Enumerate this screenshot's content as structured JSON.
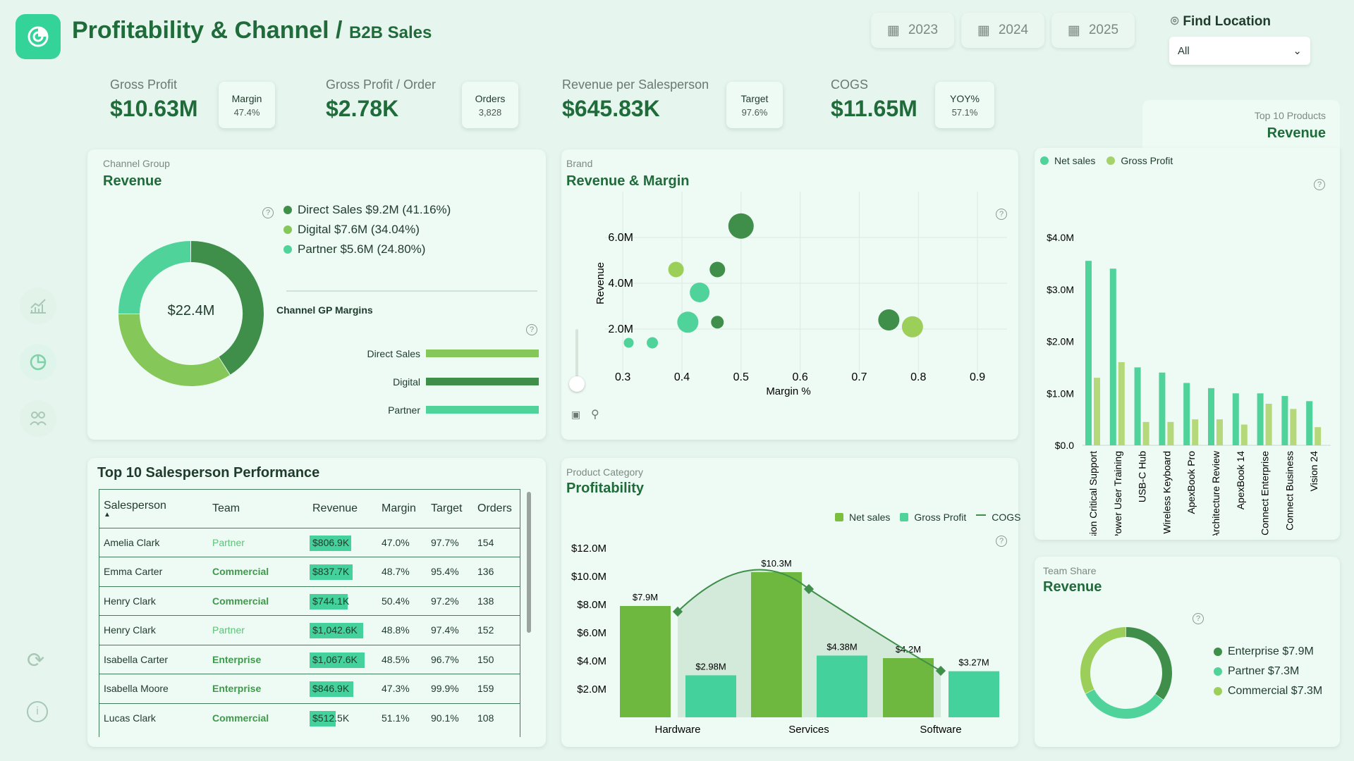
{
  "header": {
    "title": "Profitability & Channel",
    "separator": "/",
    "subtitle": "B2B Sales",
    "years": [
      "2023",
      "2024",
      "2025"
    ],
    "find_location": {
      "label": "Find Location",
      "value": "All"
    }
  },
  "kpis": [
    {
      "label": "Gross Profit",
      "value": "$10.63M",
      "badge_label": "Margin",
      "badge_value": "47.4%"
    },
    {
      "label": "Gross Profit / Order",
      "value": "$2.78K",
      "badge_label": "Orders",
      "badge_value": "3,828"
    },
    {
      "label": "Revenue per Salesperson",
      "value": "$645.83K",
      "badge_label": "Target",
      "badge_value": "97.6%"
    },
    {
      "label": "COGS",
      "value": "$11.65M",
      "badge_label": "YOY%",
      "badge_value": "57.1%"
    }
  ],
  "channel": {
    "tag": "Channel Group",
    "title": "Revenue",
    "center": "$22.4M",
    "legend": [
      "Direct Sales $9.2M (41.16%)",
      "Digital $7.6M (34.04%)",
      "Partner $5.6M (24.80%)"
    ],
    "gp_title": "Channel GP Margins",
    "gp": [
      {
        "label": "Direct Sales",
        "value": "48.1%",
        "pct": 48.1
      },
      {
        "label": "Digital",
        "value": "48.1%",
        "pct": 48.1
      },
      {
        "label": "Partner",
        "value": "45.4%",
        "pct": 45.4
      }
    ],
    "colors": [
      "#3f8f4a",
      "#86c75a",
      "#4fd39a"
    ]
  },
  "brand": {
    "tag": "Brand",
    "title": "Revenue & Margin",
    "xlabel": "Margin %",
    "ylabel": "Revenue",
    "xticks": [
      "0.3",
      "0.4",
      "0.5",
      "0.6",
      "0.7",
      "0.8",
      "0.9"
    ],
    "yticks": [
      "2.0M",
      "4.0M",
      "6.0M"
    ]
  },
  "products": {
    "tag": "Top 10 Products",
    "title": "Revenue",
    "legend": [
      "Net sales",
      "Gross Profit"
    ],
    "yticks": [
      "$4.0M",
      "$3.0M",
      "$2.0M",
      "$1.0M",
      "$0.0"
    ],
    "names": [
      "Mission Critical Support",
      "Power User Training",
      "USB-C Hub",
      "Wireless Keyboard",
      "ApexBook Pro",
      "Architecture Review",
      "ApexBook 14",
      "Connect Enterprise",
      "Connect Business",
      "Vision 24"
    ]
  },
  "sales": {
    "title": "Top 10 Salesperson Performance",
    "columns": [
      "Salesperson",
      "Team",
      "Revenue",
      "Margin",
      "Target",
      "Orders"
    ],
    "rows": [
      {
        "name": "Amelia Clark",
        "team": "Partner",
        "revenue": "$806.9K",
        "margin": "47.0%",
        "target": "97.7%",
        "orders": "154"
      },
      {
        "name": "Emma Carter",
        "team": "Commercial",
        "revenue": "$837.7K",
        "margin": "48.7%",
        "target": "95.4%",
        "orders": "136"
      },
      {
        "name": "Henry Clark",
        "team": "Commercial",
        "revenue": "$744.1K",
        "margin": "50.4%",
        "target": "97.2%",
        "orders": "138"
      },
      {
        "name": "Henry Clark",
        "team": "Partner",
        "revenue": "$1,042.6K",
        "margin": "48.8%",
        "target": "97.4%",
        "orders": "152"
      },
      {
        "name": "Isabella Carter",
        "team": "Enterprise",
        "revenue": "$1,067.6K",
        "margin": "48.5%",
        "target": "96.7%",
        "orders": "150"
      },
      {
        "name": "Isabella Moore",
        "team": "Enterprise",
        "revenue": "$846.9K",
        "margin": "47.3%",
        "target": "99.9%",
        "orders": "159"
      },
      {
        "name": "Lucas Clark",
        "team": "Commercial",
        "revenue": "$512.5K",
        "margin": "51.1%",
        "target": "90.1%",
        "orders": "108"
      }
    ]
  },
  "category": {
    "tag": "Product Category",
    "title": "Profitability",
    "legend": [
      "Net sales",
      "Gross Profit",
      "COGS"
    ],
    "yticks": [
      "$12.0M",
      "$10.0M",
      "$8.0M",
      "$6.0M",
      "$4.0M",
      "$2.0M"
    ],
    "cats": [
      "Hardware",
      "Services",
      "Software"
    ],
    "labels": [
      "$7.9M",
      "$2.98M",
      "$10.3M",
      "$4.38M",
      "$4.2M",
      "$3.27M"
    ]
  },
  "team": {
    "tag": "Team Share",
    "title": "Revenue",
    "legend": [
      "Enterprise $7.9M",
      "Partner $7.3M",
      "Commercial $7.3M"
    ]
  },
  "chart_data": [
    {
      "type": "pie",
      "title": "Revenue",
      "categories": [
        "Direct Sales",
        "Digital",
        "Partner"
      ],
      "values": [
        9.2,
        7.6,
        5.6
      ],
      "percent": [
        41.16,
        34.04,
        24.8
      ]
    },
    {
      "type": "bar",
      "title": "Channel GP Margins",
      "categories": [
        "Direct Sales",
        "Digital",
        "Partner"
      ],
      "values": [
        48.1,
        48.1,
        45.4
      ]
    },
    {
      "type": "scatter",
      "title": "Revenue & Margin",
      "xlabel": "Margin %",
      "ylabel": "Revenue",
      "xlim": [
        0.27,
        0.95
      ],
      "ylim": [
        0,
        8
      ],
      "points": [
        {
          "x": 0.5,
          "y": 6.5,
          "s": 18
        },
        {
          "x": 0.39,
          "y": 4.6,
          "s": 11
        },
        {
          "x": 0.46,
          "y": 4.6,
          "s": 11
        },
        {
          "x": 0.43,
          "y": 3.6,
          "s": 14
        },
        {
          "x": 0.41,
          "y": 2.3,
          "s": 15
        },
        {
          "x": 0.46,
          "y": 2.3,
          "s": 9
        },
        {
          "x": 0.75,
          "y": 2.4,
          "s": 15
        },
        {
          "x": 0.79,
          "y": 2.1,
          "s": 15
        },
        {
          "x": 0.31,
          "y": 1.4,
          "s": 7
        },
        {
          "x": 0.35,
          "y": 1.4,
          "s": 8
        }
      ]
    },
    {
      "type": "bar",
      "title": "Revenue",
      "categories": [
        "Mission Critical Support",
        "Power User Training",
        "USB-C Hub",
        "Wireless Keyboard",
        "ApexBook Pro",
        "Architecture Review",
        "ApexBook 14",
        "Connect Enterprise",
        "Connect Business",
        "Vision 24"
      ],
      "series": [
        {
          "name": "Net sales",
          "values": [
            3.55,
            3.4,
            1.5,
            1.4,
            1.2,
            1.1,
            1.0,
            1.0,
            0.95,
            0.85
          ]
        },
        {
          "name": "Gross Profit",
          "values": [
            1.3,
            1.6,
            0.45,
            0.45,
            0.5,
            0.5,
            0.4,
            0.8,
            0.7,
            0.35
          ]
        }
      ],
      "ylim": [
        0,
        4
      ]
    },
    {
      "type": "bar",
      "title": "Profitability",
      "categories": [
        "Hardware",
        "Services",
        "Software"
      ],
      "series": [
        {
          "name": "Net sales",
          "values": [
            7.9,
            10.3,
            4.2
          ]
        },
        {
          "name": "Gross Profit",
          "values": [
            2.98,
            4.38,
            3.27
          ]
        },
        {
          "name": "COGS",
          "values": [
            7.5,
            9.1,
            3.3
          ]
        }
      ],
      "ylim": [
        0,
        12
      ]
    },
    {
      "type": "pie",
      "title": "Revenue",
      "categories": [
        "Enterprise",
        "Partner",
        "Commercial"
      ],
      "values": [
        7.9,
        7.3,
        7.3
      ]
    }
  ]
}
